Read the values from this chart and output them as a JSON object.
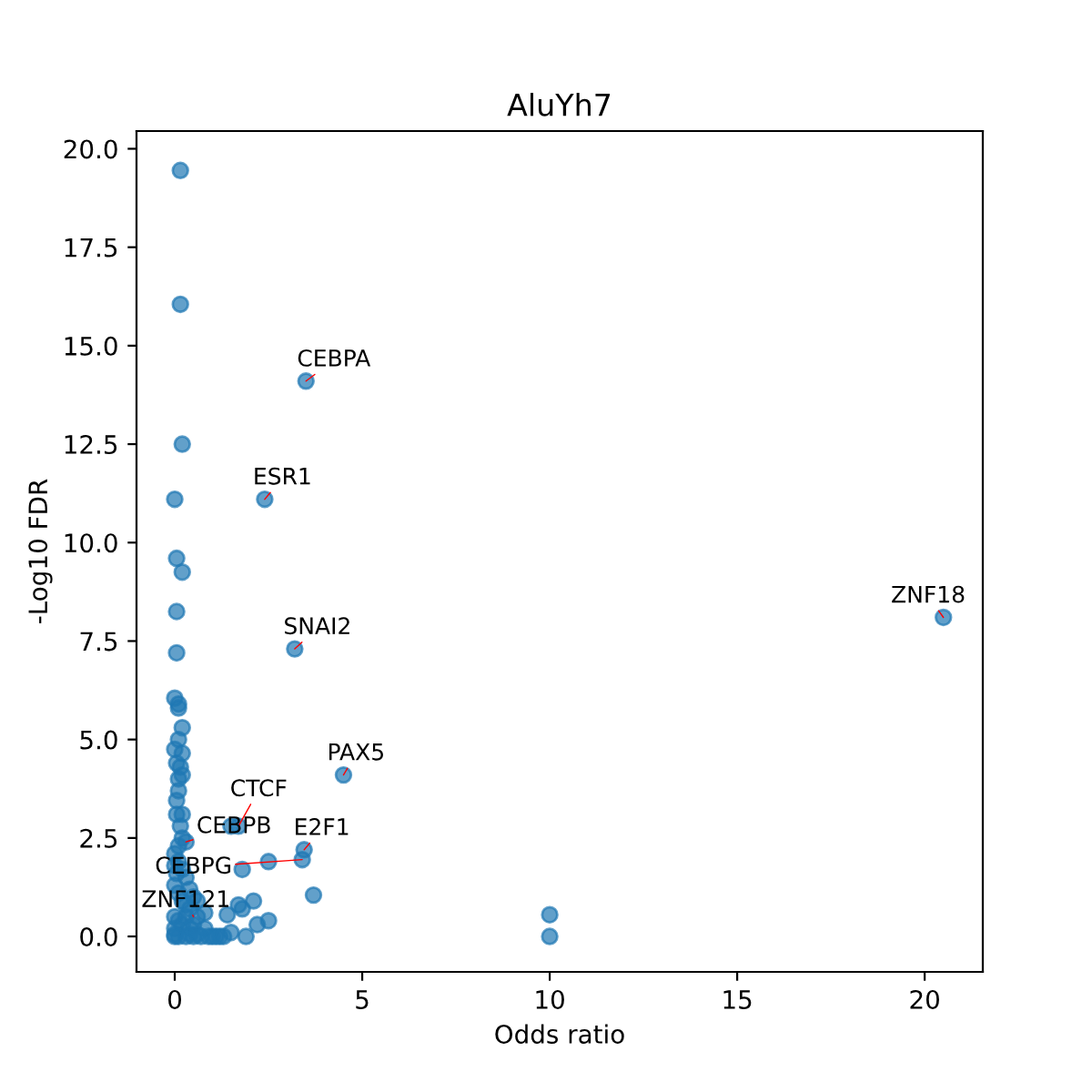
{
  "chart_data": {
    "type": "scatter",
    "title": "AluYh7",
    "xlabel": "Odds ratio",
    "ylabel": "-Log10 FDR",
    "xlim": [
      -1.02,
      21.55
    ],
    "ylim": [
      -0.9,
      20.45
    ],
    "xticks": [
      0,
      5,
      10,
      15,
      20
    ],
    "yticks": [
      {
        "value": 0,
        "label": "0.0"
      },
      {
        "value": 2.5,
        "label": "2.5"
      },
      {
        "value": 5,
        "label": "5.0"
      },
      {
        "value": 7.5,
        "label": "7.5"
      },
      {
        "value": 10,
        "label": "10.0"
      },
      {
        "value": 12.5,
        "label": "12.5"
      },
      {
        "value": 15,
        "label": "15.0"
      },
      {
        "value": 17.5,
        "label": "17.5"
      },
      {
        "value": 20,
        "label": "20.0"
      }
    ],
    "marker": "circle",
    "grid": false,
    "series": [
      {
        "color": "#1f77b4",
        "x": [
          0.15,
          0.15,
          0.2,
          0.0,
          0.05,
          0.2,
          0.05,
          0.05,
          0.0,
          0.1,
          0.1,
          0.2,
          0.0,
          0.2,
          0.1,
          0.05,
          0.15,
          0.1,
          0.2,
          0.1,
          0.05,
          0.05,
          0.2,
          0.15,
          0.2,
          0.1,
          0.0,
          0.3,
          3.5,
          2.4,
          3.2,
          4.5,
          20.5,
          1.5,
          1.7,
          3.45,
          3.4,
          2.5,
          2.1,
          1.7,
          1.8,
          3.7,
          2.5,
          2.2,
          1.9,
          1.4,
          1.5,
          1.2,
          1.0,
          0.8,
          1.8,
          10.0,
          10.0,
          0.0,
          0.05,
          0.1,
          0.2,
          0.3,
          0.4,
          0.5,
          0.6,
          0.0,
          0.1,
          0.2,
          0.3,
          0.4,
          0.6,
          0.8,
          0.0,
          0.1,
          0.2,
          0.3,
          0.5,
          0.0,
          0.4,
          0.0,
          0.1,
          0.3,
          0.5,
          0.7,
          0.9,
          1.1,
          1.3,
          0.0,
          0.4,
          0.6
        ],
        "values": [
          19.45,
          16.05,
          12.5,
          11.1,
          9.6,
          9.25,
          8.25,
          7.2,
          6.05,
          5.9,
          5.8,
          5.3,
          4.75,
          4.65,
          5.0,
          4.4,
          4.3,
          4.0,
          4.1,
          3.7,
          3.45,
          3.1,
          3.1,
          2.8,
          2.5,
          2.3,
          2.1,
          2.4,
          14.1,
          11.1,
          7.3,
          4.1,
          8.1,
          2.8,
          2.8,
          2.2,
          1.95,
          1.9,
          0.9,
          0.8,
          0.7,
          1.05,
          0.4,
          0.3,
          0.0,
          0.55,
          0.1,
          0.0,
          0.0,
          0.2,
          1.7,
          0.55,
          0.0,
          1.8,
          1.6,
          1.9,
          1.7,
          1.5,
          1.2,
          1.0,
          0.9,
          1.3,
          1.1,
          0.9,
          0.8,
          0.7,
          0.5,
          0.6,
          0.5,
          0.4,
          0.3,
          0.5,
          0.3,
          0.2,
          0.2,
          0.0,
          0.0,
          0.0,
          0.0,
          0.0,
          0.0,
          0.0,
          0.0,
          0.05,
          0.05,
          0.05
        ]
      }
    ],
    "annotations": [
      {
        "text": "CEBPA",
        "x": 3.5,
        "y": 14.1
      },
      {
        "text": "ESR1",
        "x": 2.4,
        "y": 11.1
      },
      {
        "text": "SNAI2",
        "x": 3.2,
        "y": 7.3
      },
      {
        "text": "PAX5",
        "x": 4.5,
        "y": 4.1
      },
      {
        "text": "ZNF18",
        "x": 20.5,
        "y": 8.1
      },
      {
        "text": "CTCF",
        "x": 1.7,
        "y": 2.8
      },
      {
        "text": "CEBPB",
        "x": 0.3,
        "y": 2.4
      },
      {
        "text": "E2F1",
        "x": 3.45,
        "y": 2.2
      },
      {
        "text": "CEBPG",
        "x": 3.4,
        "y": 1.95
      },
      {
        "text": "ZNF121",
        "x": 0.5,
        "y": 0.5
      }
    ]
  }
}
